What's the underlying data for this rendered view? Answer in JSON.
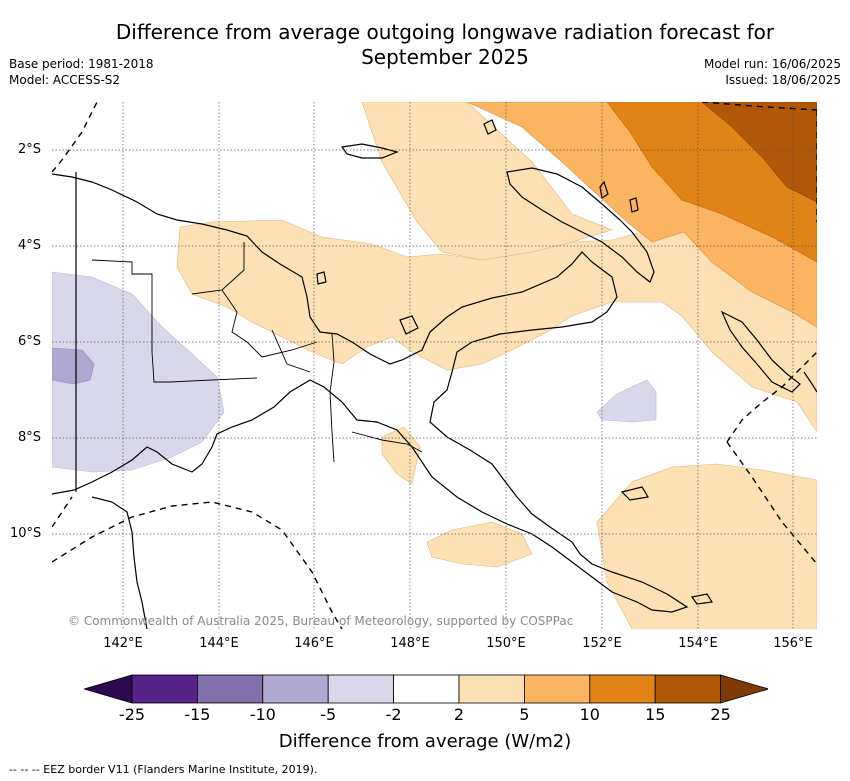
{
  "title_line1": "Difference from average outgoing longwave radiation forecast for",
  "title_line2": "September 2025",
  "meta": {
    "base_period": "Base period: 1981-2018",
    "model": "Model: ACCESS-S2",
    "model_run": "Model run: 16/06/2025",
    "issued": "Issued: 18/06/2025"
  },
  "lat_labels": [
    "2°S",
    "4°S",
    "6°S",
    "8°S",
    "10°S"
  ],
  "lon_labels": [
    "142°E",
    "144°E",
    "146°E",
    "148°E",
    "150°E",
    "152°E",
    "154°E",
    "156°E"
  ],
  "copyright": "© Commonwealth of Australia 2025, Bureau of Meteorology, supported by COSPPac",
  "colorbar": {
    "ticks": [
      "-25",
      "-15",
      "-10",
      "-5",
      "-2",
      "2",
      "5",
      "10",
      "15",
      "25"
    ],
    "colors": [
      "#552288",
      "#8170ab",
      "#b1a8d1",
      "#d8d8ea",
      "#ffffff",
      "#fde0b4",
      "#fbb45f",
      "#e18317",
      "#b15807"
    ],
    "under_color": "#2d0a50",
    "over_color": "#7e3a05",
    "title": "Difference from average (W/m2)"
  },
  "footnote": "-- -- -- EEZ border V11 (Flanders Marine Institute, 2019)."
}
